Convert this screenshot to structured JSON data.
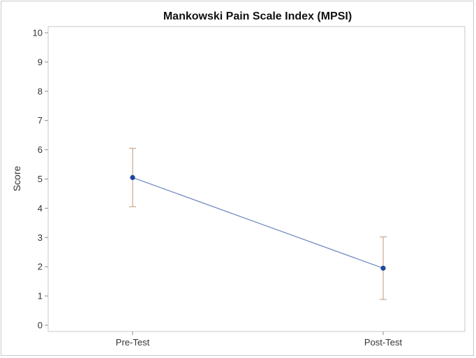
{
  "chart_data": {
    "type": "line",
    "title": "Mankowski Pain Scale Index (MPSI)",
    "xlabel": "",
    "ylabel": "Score",
    "categories": [
      "Pre-Test",
      "Post-Test"
    ],
    "ylim": [
      0,
      10
    ],
    "yticks": [
      0,
      1,
      2,
      3,
      4,
      5,
      6,
      7,
      8,
      9,
      10
    ],
    "grid": false,
    "legend": "none",
    "series": [
      {
        "values": [
          5.05,
          1.95
        ],
        "error_low": [
          4.05,
          0.88
        ],
        "error_high": [
          6.05,
          3.02
        ]
      }
    ],
    "colors": {
      "line": "#6b86bf",
      "marker": "#1f47a0",
      "error_bar": "#c9a88e",
      "axis": "#c8c8c8",
      "tick": "#8c8c8c"
    }
  }
}
